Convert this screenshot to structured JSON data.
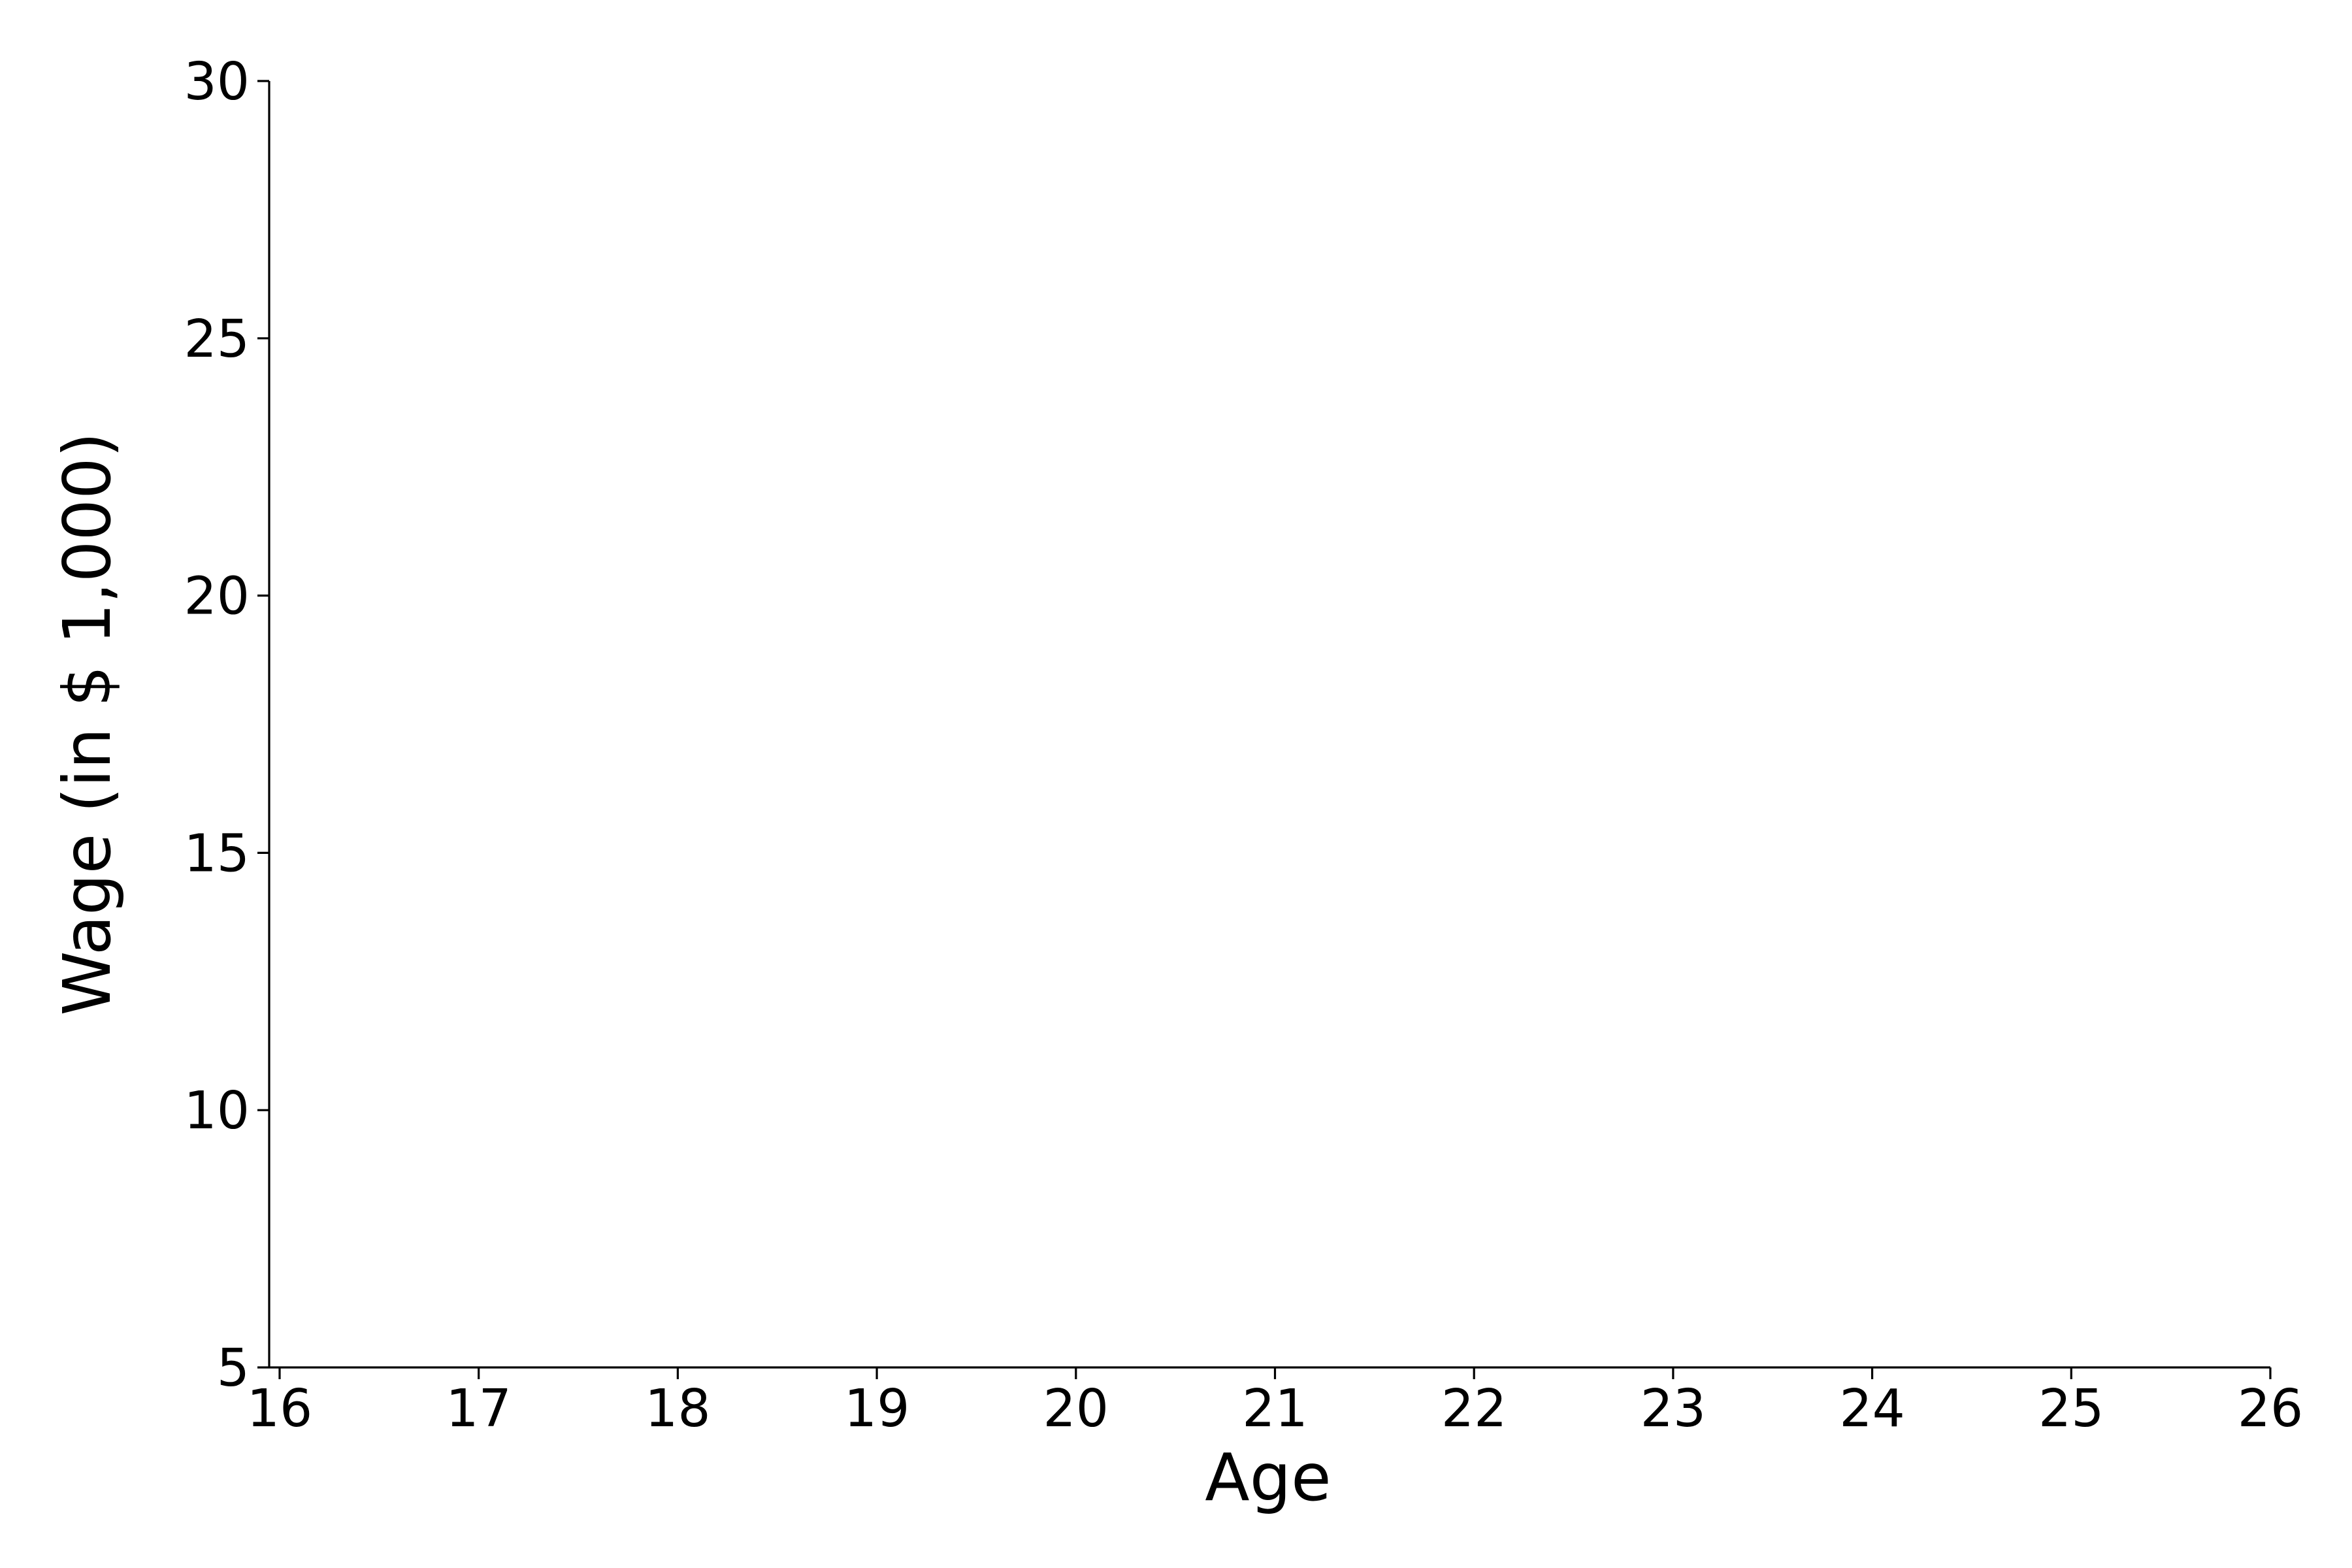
{
  "chart_data": {
    "type": "line",
    "title": "",
    "xlabel": "Age",
    "ylabel": "Wage (in $ 1,000)",
    "xlim": [
      16,
      26
    ],
    "ylim": [
      5,
      30
    ],
    "x_ticks": [
      "16",
      "17",
      "18",
      "19",
      "20",
      "21",
      "22",
      "23",
      "24",
      "25",
      "26"
    ],
    "y_ticks": [
      "5",
      "10",
      "15",
      "20",
      "25",
      "30"
    ],
    "series": [],
    "grid": false,
    "legend": "none"
  }
}
